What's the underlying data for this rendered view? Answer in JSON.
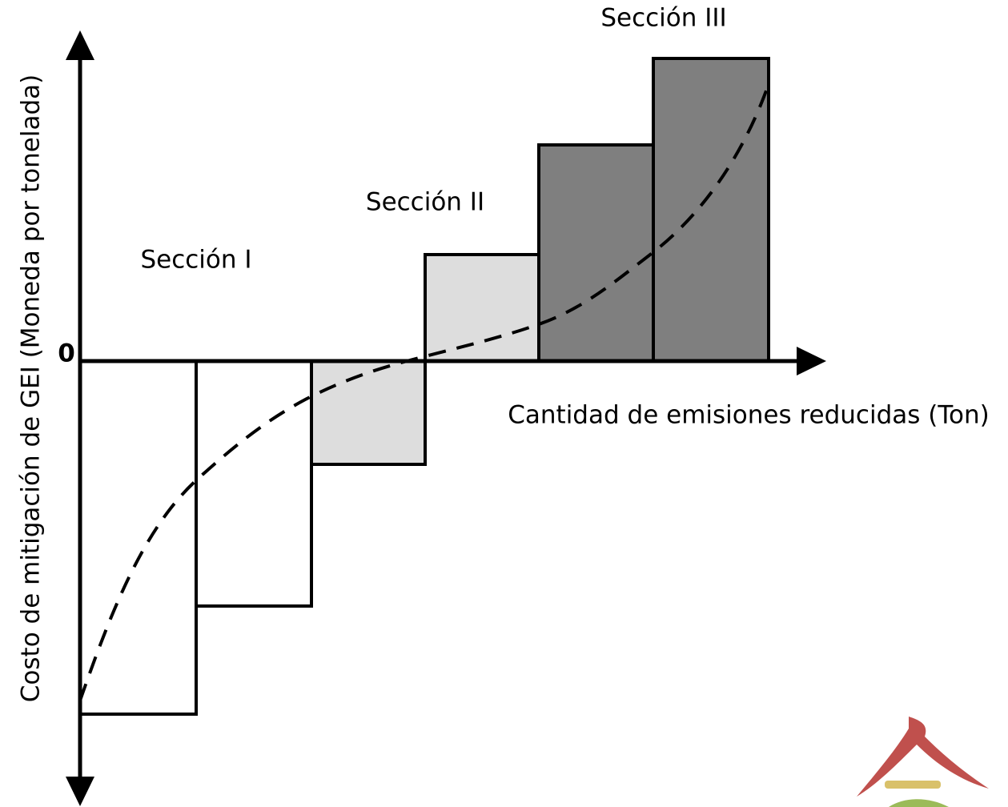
{
  "sections": [
    "Sección I",
    "Sección II",
    "Sección III"
  ],
  "origin_label": "0",
  "x_axis_label": "Cantidad de emisiones reducidas (Ton)",
  "y_axis_label": "Costo de mitigación de GEI (Moneda por tonelada)"
}
